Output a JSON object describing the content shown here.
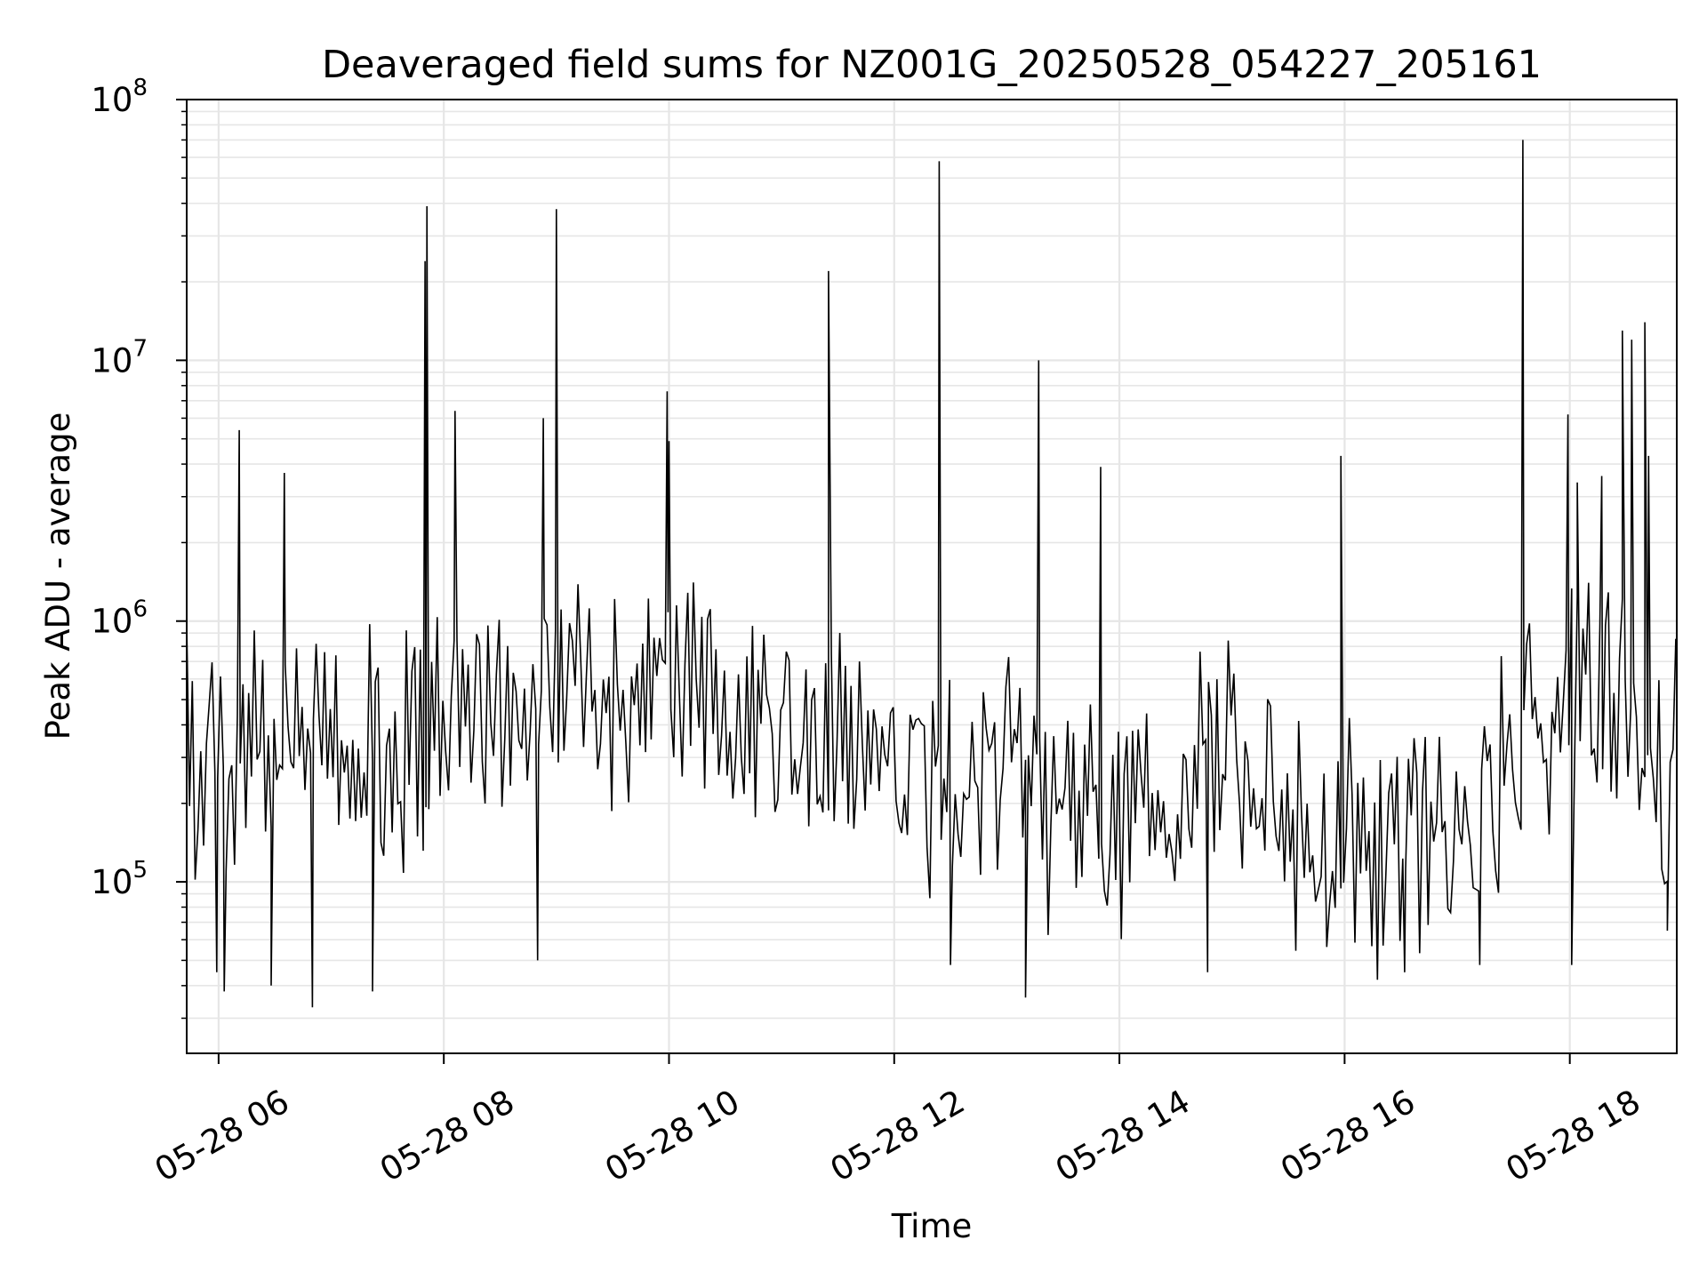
{
  "chart_data": {
    "type": "line",
    "title": "Deaveraged field sums for NZ001G_20250528_054227_205161",
    "xlabel": "Time",
    "ylabel": "Peak ADU - average",
    "xlim": [
      "2025-05-28 05:43",
      "2025-05-28 18:57"
    ],
    "ylim": [
      22000,
      100000000
    ],
    "y_scale": "log",
    "grid": true,
    "grid_minor": true,
    "line_color": "#000000",
    "grid_color": "#e6e6e6",
    "x_ticks": [
      {
        "value": "2025-05-28 06:00",
        "label": "05-28 06"
      },
      {
        "value": "2025-05-28 08:00",
        "label": "05-28 08"
      },
      {
        "value": "2025-05-28 10:00",
        "label": "05-28 10"
      },
      {
        "value": "2025-05-28 12:00",
        "label": "05-28 12"
      },
      {
        "value": "2025-05-28 14:00",
        "label": "05-28 14"
      },
      {
        "value": "2025-05-28 16:00",
        "label": "05-28 16"
      },
      {
        "value": "2025-05-28 18:00",
        "label": "05-28 18"
      }
    ],
    "y_ticks": [
      {
        "value": 100000,
        "base": "10",
        "exp": "5"
      },
      {
        "value": 1000000,
        "base": "10",
        "exp": "6"
      },
      {
        "value": 10000000,
        "base": "10",
        "exp": "7"
      },
      {
        "value": 100000000,
        "base": "10",
        "exp": "8"
      }
    ],
    "series": [
      {
        "sample_interval_minutes": 1.5,
        "baseline_profile": [
          {
            "t": "2025-05-28 05:43",
            "y": 300000
          },
          {
            "t": "2025-05-28 06:30",
            "y": 290000
          },
          {
            "t": "2025-05-28 07:30",
            "y": 330000
          },
          {
            "t": "2025-05-28 08:30",
            "y": 420000
          },
          {
            "t": "2025-05-28 09:30",
            "y": 560000
          },
          {
            "t": "2025-05-28 10:30",
            "y": 480000
          },
          {
            "t": "2025-05-28 11:30",
            "y": 330000
          },
          {
            "t": "2025-05-28 12:30",
            "y": 210000
          },
          {
            "t": "2025-05-28 13:00",
            "y": 300000
          },
          {
            "t": "2025-05-28 13:40",
            "y": 180000
          },
          {
            "t": "2025-05-28 14:30",
            "y": 160000
          },
          {
            "t": "2025-05-28 15:00",
            "y": 420000
          },
          {
            "t": "2025-05-28 15:30",
            "y": 140000
          },
          {
            "t": "2025-05-28 16:30",
            "y": 150000
          },
          {
            "t": "2025-05-28 17:00",
            "y": 130000
          },
          {
            "t": "2025-05-28 17:30",
            "y": 360000
          },
          {
            "t": "2025-05-28 18:00",
            "y": 560000
          },
          {
            "t": "2025-05-28 18:30",
            "y": 450000
          },
          {
            "t": "2025-05-28 18:57",
            "y": 140000
          }
        ],
        "spikes": [
          {
            "t": "2025-05-28 06:11",
            "y": 5400000
          },
          {
            "t": "2025-05-28 06:35",
            "y": 3700000
          },
          {
            "t": "2025-05-28 07:50",
            "y": 24000000
          },
          {
            "t": "2025-05-28 07:51",
            "y": 39000000
          },
          {
            "t": "2025-05-28 08:06",
            "y": 6400000
          },
          {
            "t": "2025-05-28 08:53",
            "y": 6000000
          },
          {
            "t": "2025-05-28 09:00",
            "y": 38000000
          },
          {
            "t": "2025-05-28 09:59",
            "y": 7600000
          },
          {
            "t": "2025-05-28 10:00",
            "y": 4900000
          },
          {
            "t": "2025-05-28 11:25",
            "y": 22000000
          },
          {
            "t": "2025-05-28 12:24",
            "y": 58000000
          },
          {
            "t": "2025-05-28 13:17",
            "y": 10000000
          },
          {
            "t": "2025-05-28 13:50",
            "y": 3900000
          },
          {
            "t": "2025-05-28 15:58",
            "y": 4300000
          },
          {
            "t": "2025-05-28 17:35",
            "y": 70000000
          },
          {
            "t": "2025-05-28 17:59",
            "y": 6200000
          },
          {
            "t": "2025-05-28 18:04",
            "y": 3400000
          },
          {
            "t": "2025-05-28 18:17",
            "y": 3600000
          },
          {
            "t": "2025-05-28 18:28",
            "y": 13000000
          },
          {
            "t": "2025-05-28 18:33",
            "y": 12000000
          },
          {
            "t": "2025-05-28 18:40",
            "y": 14000000
          },
          {
            "t": "2025-05-28 18:42",
            "y": 4300000
          }
        ],
        "dips": [
          {
            "t": "2025-05-28 05:59",
            "y": 45000
          },
          {
            "t": "2025-05-28 06:03",
            "y": 38000
          },
          {
            "t": "2025-05-28 06:28",
            "y": 40000
          },
          {
            "t": "2025-05-28 06:50",
            "y": 33000
          },
          {
            "t": "2025-05-28 07:22",
            "y": 38000
          },
          {
            "t": "2025-05-28 08:50",
            "y": 50000
          },
          {
            "t": "2025-05-28 12:30",
            "y": 48000
          },
          {
            "t": "2025-05-28 13:10",
            "y": 36000
          },
          {
            "t": "2025-05-28 14:47",
            "y": 45000
          },
          {
            "t": "2025-05-28 16:32",
            "y": 45000
          },
          {
            "t": "2025-05-28 17:12",
            "y": 48000
          },
          {
            "t": "2025-05-28 18:01",
            "y": 48000
          },
          {
            "t": "2025-05-28 18:52",
            "y": 65000
          }
        ]
      }
    ]
  }
}
